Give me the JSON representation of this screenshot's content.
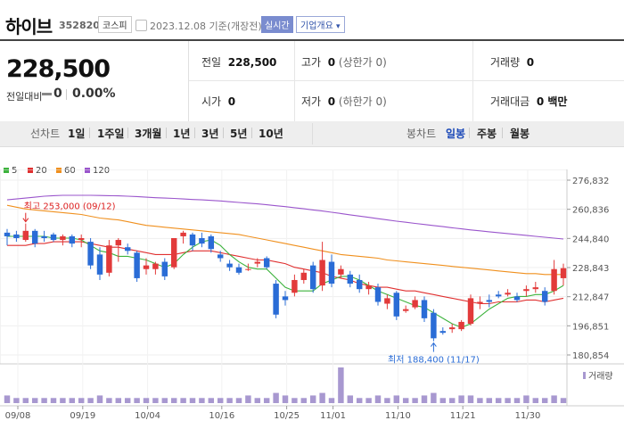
{
  "header": {
    "name": "하이브",
    "code": "352820",
    "market": "코스피",
    "date": "2023.12.08 기준(개장전)",
    "realtime_btn": "실시간",
    "company_btn": "기업개요",
    "company_btn_arrow": "▾"
  },
  "summary": {
    "price": "228,500",
    "change_label": "전일대비",
    "change_value": "0",
    "change_pct": "0.00%",
    "prev_label": "전일",
    "prev_value": "228,500",
    "high_label": "고가",
    "high_value": "0",
    "high_sub": "(상한가 0)",
    "volume_label": "거래량",
    "volume_value": "0",
    "open_label": "시가",
    "open_value": "0",
    "low_label": "저가",
    "low_value": "0",
    "low_sub": "(하한가 0)",
    "amount_label": "거래대금",
    "amount_value": "0 백만"
  },
  "period_tabs": {
    "line_label": "선차트",
    "items": [
      "1일",
      "1주일",
      "3개월",
      "1년",
      "3년",
      "5년",
      "10년"
    ],
    "candle_label": "봉차트",
    "candle_items": [
      "일봉",
      "주봉",
      "월봉"
    ],
    "candle_active": "일봉"
  },
  "legend": [
    {
      "label": "5",
      "color": "#3db33d"
    },
    {
      "label": "20",
      "color": "#e03030"
    },
    {
      "label": "60",
      "color": "#f0901e"
    },
    {
      "label": "120",
      "color": "#9a55cc"
    }
  ],
  "colors": {
    "up": "#e23a3a",
    "down": "#2a6cd6",
    "volume": "#a898d0"
  },
  "chart_data": {
    "type": "candlestick",
    "y_ticks": [
      "276,832",
      "260,836",
      "244,840",
      "228,843",
      "212,847",
      "196,851",
      "180,854"
    ],
    "ylim": [
      180854,
      276832
    ],
    "x_tick_labels": [
      {
        "label": "09/08",
        "index": 0
      },
      {
        "label": "09/19",
        "index": 7
      },
      {
        "label": "10/04",
        "index": 14
      },
      {
        "label": "10/16",
        "index": 22
      },
      {
        "label": "10/25",
        "index": 29
      },
      {
        "label": "11/01",
        "index": 34
      },
      {
        "label": "11/10",
        "index": 41
      },
      {
        "label": "11/21",
        "index": 48
      },
      {
        "label": "11/30",
        "index": 55
      }
    ],
    "max_annotation": {
      "text": "최고 253,000 (09/12)",
      "index": 2,
      "value": 253000
    },
    "min_annotation": {
      "text": "최저 188,400 (11/17)",
      "index": 46,
      "value": 188400
    },
    "volume_label": "거래량",
    "candles": [
      {
        "o": 248000,
        "h": 250000,
        "l": 241000,
        "c": 246000
      },
      {
        "o": 247000,
        "h": 249000,
        "l": 243000,
        "c": 245000
      },
      {
        "o": 244000,
        "h": 253000,
        "l": 243000,
        "c": 249000
      },
      {
        "o": 249000,
        "h": 250000,
        "l": 240000,
        "c": 242000
      },
      {
        "o": 246000,
        "h": 249000,
        "l": 243000,
        "c": 245000
      },
      {
        "o": 247000,
        "h": 248000,
        "l": 243000,
        "c": 244000
      },
      {
        "o": 244000,
        "h": 247000,
        "l": 241000,
        "c": 246000
      },
      {
        "o": 246000,
        "h": 247000,
        "l": 240000,
        "c": 242000
      },
      {
        "o": 244000,
        "h": 247000,
        "l": 240000,
        "c": 245000
      },
      {
        "o": 243000,
        "h": 245000,
        "l": 228000,
        "c": 230000
      },
      {
        "o": 236000,
        "h": 240000,
        "l": 222000,
        "c": 225000
      },
      {
        "o": 226000,
        "h": 244000,
        "l": 224000,
        "c": 241000
      },
      {
        "o": 241000,
        "h": 245000,
        "l": 232000,
        "c": 244000
      },
      {
        "o": 240000,
        "h": 242000,
        "l": 236000,
        "c": 238000
      },
      {
        "o": 237000,
        "h": 238000,
        "l": 221000,
        "c": 223000
      },
      {
        "o": 228000,
        "h": 234000,
        "l": 225000,
        "c": 230000
      },
      {
        "o": 228000,
        "h": 232000,
        "l": 225000,
        "c": 231000
      },
      {
        "o": 232000,
        "h": 234000,
        "l": 222000,
        "c": 224000
      },
      {
        "o": 229000,
        "h": 245000,
        "l": 228000,
        "c": 245000
      },
      {
        "o": 246000,
        "h": 249000,
        "l": 242000,
        "c": 248000
      },
      {
        "o": 247000,
        "h": 248000,
        "l": 238000,
        "c": 241000
      },
      {
        "o": 245000,
        "h": 248000,
        "l": 240000,
        "c": 242000
      },
      {
        "o": 246000,
        "h": 247000,
        "l": 237000,
        "c": 239000
      },
      {
        "o": 236000,
        "h": 238000,
        "l": 232000,
        "c": 234000
      },
      {
        "o": 231000,
        "h": 233000,
        "l": 227000,
        "c": 229000
      },
      {
        "o": 229000,
        "h": 231000,
        "l": 225000,
        "c": 226000
      },
      {
        "o": 228000,
        "h": 231000,
        "l": 227000,
        "c": 228000
      },
      {
        "o": 231000,
        "h": 234000,
        "l": 229000,
        "c": 232000
      },
      {
        "o": 234000,
        "h": 235000,
        "l": 228000,
        "c": 229000
      },
      {
        "o": 220000,
        "h": 222000,
        "l": 201000,
        "c": 203000
      },
      {
        "o": 213000,
        "h": 216000,
        "l": 208000,
        "c": 211000
      },
      {
        "o": 215000,
        "h": 225000,
        "l": 213000,
        "c": 222000
      },
      {
        "o": 222000,
        "h": 228000,
        "l": 220000,
        "c": 226000
      },
      {
        "o": 230000,
        "h": 232000,
        "l": 215000,
        "c": 217000
      },
      {
        "o": 219000,
        "h": 243000,
        "l": 216000,
        "c": 233000
      },
      {
        "o": 232000,
        "h": 236000,
        "l": 218000,
        "c": 220000
      },
      {
        "o": 225000,
        "h": 230000,
        "l": 223000,
        "c": 228000
      },
      {
        "o": 225000,
        "h": 227000,
        "l": 218000,
        "c": 220000
      },
      {
        "o": 222000,
        "h": 225000,
        "l": 215000,
        "c": 217000
      },
      {
        "o": 217000,
        "h": 221000,
        "l": 214000,
        "c": 219000
      },
      {
        "o": 218000,
        "h": 220000,
        "l": 208000,
        "c": 210000
      },
      {
        "o": 209000,
        "h": 214000,
        "l": 206000,
        "c": 212000
      },
      {
        "o": 215000,
        "h": 216000,
        "l": 200000,
        "c": 202000
      },
      {
        "o": 205000,
        "h": 208000,
        "l": 204000,
        "c": 206000
      },
      {
        "o": 207000,
        "h": 213000,
        "l": 206000,
        "c": 211000
      },
      {
        "o": 211000,
        "h": 213000,
        "l": 199000,
        "c": 201000
      },
      {
        "o": 204000,
        "h": 206000,
        "l": 188400,
        "c": 190000
      },
      {
        "o": 194000,
        "h": 196000,
        "l": 192000,
        "c": 193000
      },
      {
        "o": 195000,
        "h": 198000,
        "l": 193000,
        "c": 196000
      },
      {
        "o": 195000,
        "h": 200000,
        "l": 194000,
        "c": 199000
      },
      {
        "o": 198000,
        "h": 214000,
        "l": 197000,
        "c": 212000
      },
      {
        "o": 209000,
        "h": 213000,
        "l": 206000,
        "c": 210000
      },
      {
        "o": 211000,
        "h": 214000,
        "l": 207000,
        "c": 210000
      },
      {
        "o": 214000,
        "h": 216000,
        "l": 212000,
        "c": 213000
      },
      {
        "o": 214000,
        "h": 217000,
        "l": 213000,
        "c": 215000
      },
      {
        "o": 213000,
        "h": 215000,
        "l": 210000,
        "c": 211000
      },
      {
        "o": 216000,
        "h": 219000,
        "l": 213000,
        "c": 217000
      },
      {
        "o": 217000,
        "h": 221000,
        "l": 215000,
        "c": 218000
      },
      {
        "o": 216000,
        "h": 218000,
        "l": 208000,
        "c": 210000
      },
      {
        "o": 216000,
        "h": 233000,
        "l": 214000,
        "c": 228000
      },
      {
        "o": 223000,
        "h": 231000,
        "l": 219000,
        "c": 228500
      }
    ],
    "volume": [
      3,
      2,
      2,
      2,
      2,
      2,
      2,
      2,
      2,
      2,
      3,
      2,
      2,
      2,
      2,
      2,
      2,
      2,
      2,
      2,
      2,
      2,
      2,
      2,
      2,
      2,
      3,
      2,
      2,
      4,
      3,
      2,
      2,
      3,
      4,
      2,
      14,
      3,
      2,
      2,
      3,
      2,
      3,
      2,
      2,
      3,
      4,
      2,
      2,
      3,
      3,
      2,
      2,
      2,
      2,
      2,
      3,
      2,
      2,
      3,
      2
    ],
    "ma5": [
      246000,
      246000,
      246000,
      246000,
      246000,
      245000,
      245000,
      245000,
      244000,
      241000,
      238000,
      237000,
      235000,
      235000,
      234000,
      233000,
      231000,
      229000,
      231000,
      236000,
      240000,
      243000,
      244000,
      241000,
      236000,
      232000,
      229000,
      228000,
      228000,
      223000,
      218000,
      216000,
      216000,
      216000,
      220000,
      222000,
      224000,
      224000,
      222000,
      219000,
      216000,
      214000,
      212000,
      210000,
      208000,
      207000,
      204000,
      201000,
      198000,
      196000,
      198000,
      202000,
      206000,
      209000,
      212000,
      213000,
      213000,
      214000,
      214000,
      216000,
      219000
    ],
    "ma20": [
      241000,
      241000,
      241000,
      242000,
      242000,
      243000,
      243000,
      243000,
      243000,
      242000,
      241000,
      240000,
      240000,
      239000,
      238000,
      237000,
      236000,
      236000,
      236000,
      237000,
      238000,
      238000,
      238000,
      237000,
      236000,
      235000,
      234000,
      233000,
      233000,
      232000,
      231000,
      229000,
      228000,
      227000,
      226000,
      224000,
      223000,
      222000,
      220000,
      219000,
      218000,
      218000,
      217000,
      216000,
      216000,
      215000,
      214000,
      213000,
      212000,
      211000,
      210000,
      209000,
      209000,
      210000,
      210000,
      210000,
      211000,
      211000,
      210000,
      211000,
      212000
    ],
    "ma60": [
      263000,
      262000,
      261000,
      260500,
      260000,
      259500,
      259000,
      258500,
      258000,
      257000,
      256000,
      255500,
      255000,
      254000,
      253000,
      252000,
      251500,
      251000,
      250500,
      250000,
      249500,
      249000,
      248500,
      248000,
      247500,
      247000,
      246000,
      245000,
      244000,
      243000,
      242000,
      241000,
      240000,
      239000,
      238000,
      237000,
      236000,
      235500,
      235000,
      234500,
      234000,
      233000,
      232500,
      232000,
      231500,
      231000,
      230500,
      230000,
      229500,
      229000,
      228500,
      228000,
      227500,
      227000,
      226500,
      226000,
      225500,
      225500,
      225000,
      225000,
      225000
    ],
    "ma120": [
      266000,
      266500,
      267000,
      267500,
      268000,
      268300,
      268500,
      268500,
      268500,
      268500,
      268400,
      268300,
      268200,
      268000,
      267800,
      267500,
      267200,
      267000,
      266800,
      266500,
      266200,
      266000,
      265700,
      265400,
      265000,
      264600,
      264200,
      263800,
      263300,
      262800,
      262300,
      261700,
      261100,
      260500,
      259900,
      259200,
      258500,
      257800,
      257100,
      256400,
      255700,
      255000,
      254300,
      253700,
      253100,
      252500,
      251900,
      251300,
      250700,
      250100,
      249500,
      249000,
      248500,
      248000,
      247500,
      247000,
      246500,
      246000,
      245500,
      245000,
      244500
    ]
  }
}
